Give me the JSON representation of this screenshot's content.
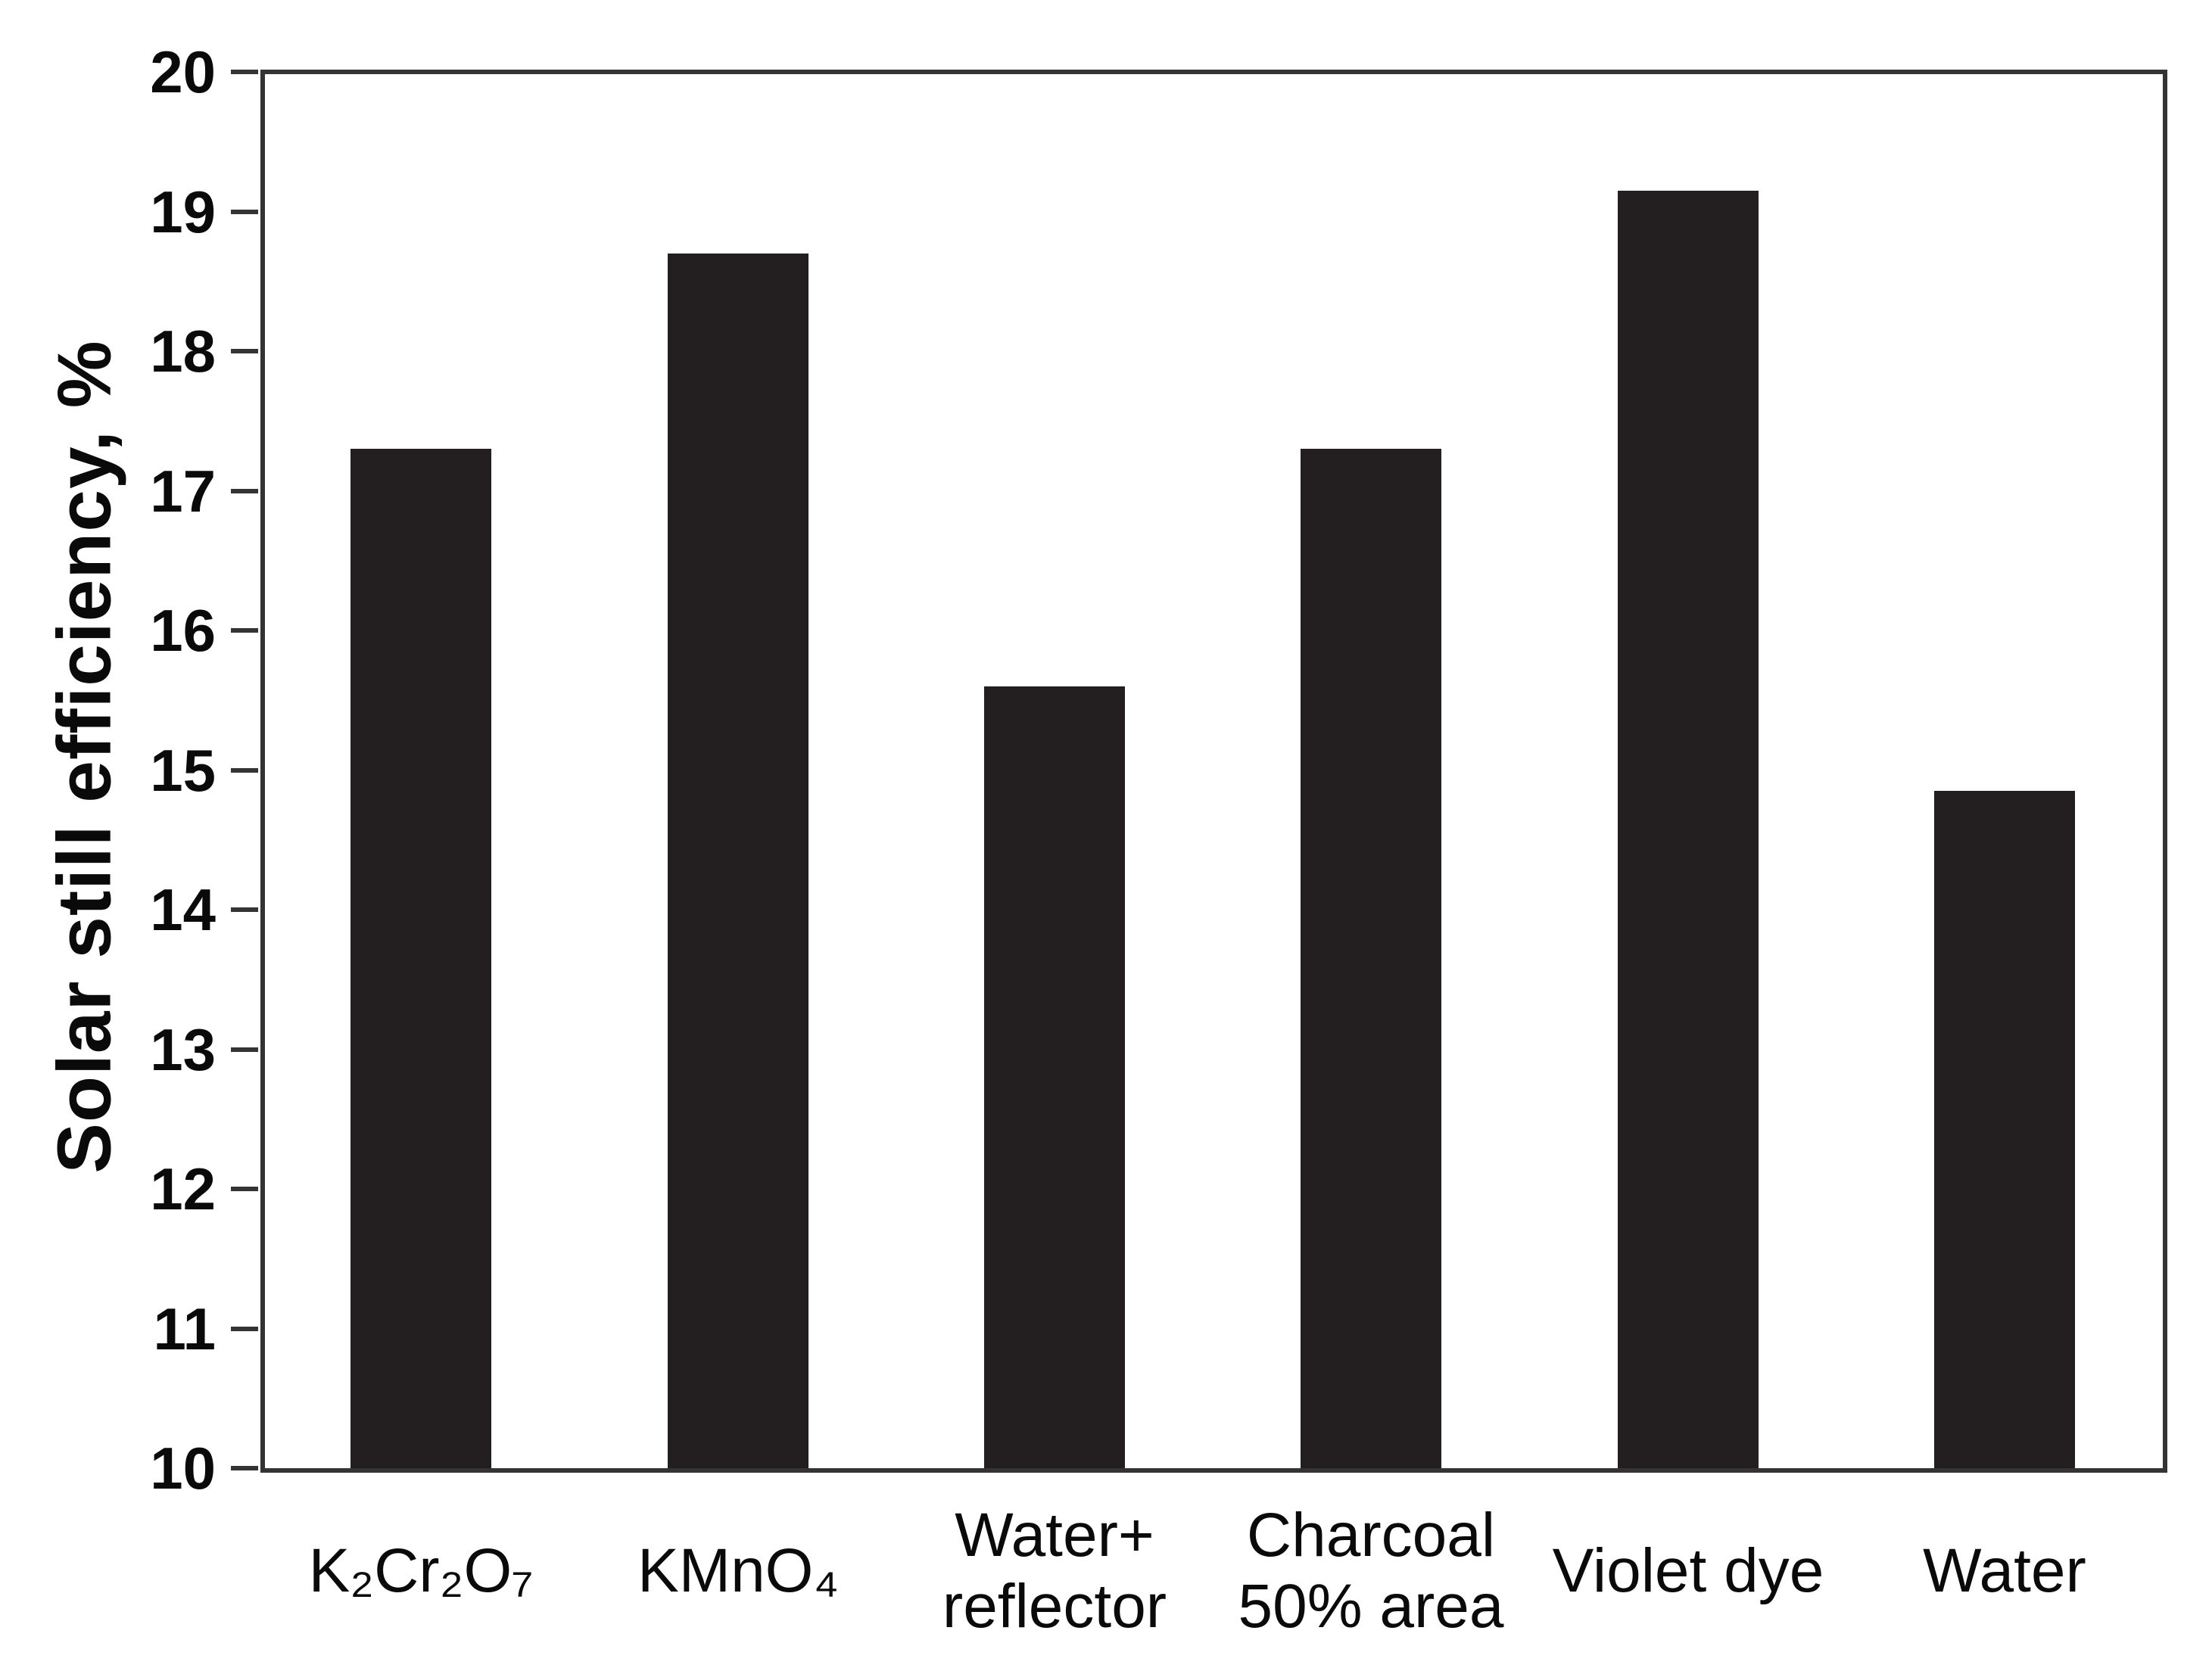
{
  "figure": {
    "background": "#ffffff",
    "text_color": "#0a0a0a",
    "axis_color": "#343434"
  },
  "chart_data": {
    "type": "bar",
    "title": "",
    "xlabel": "",
    "ylabel": "Solar still efficiency, %",
    "ylim": [
      10,
      20
    ],
    "yticks": [
      10,
      11,
      12,
      13,
      14,
      15,
      16,
      17,
      18,
      19,
      20
    ],
    "grid": false,
    "legend": null,
    "bar_color": "#231f20",
    "categories": [
      "K₂Cr₂O₇",
      "KMnO₄",
      "Water+ reflector",
      "Charcoal 50% area",
      "Violet dye",
      "Water"
    ],
    "category_lines": [
      [
        "K₂Cr₂O₇"
      ],
      [
        "KMnO₄"
      ],
      [
        "Water+",
        "reflector"
      ],
      [
        "Charcoal",
        "50% area"
      ],
      [
        "Violet dye"
      ],
      [
        "Water"
      ]
    ],
    "values": [
      17.3,
      18.7,
      15.6,
      17.3,
      19.15,
      14.85
    ]
  }
}
